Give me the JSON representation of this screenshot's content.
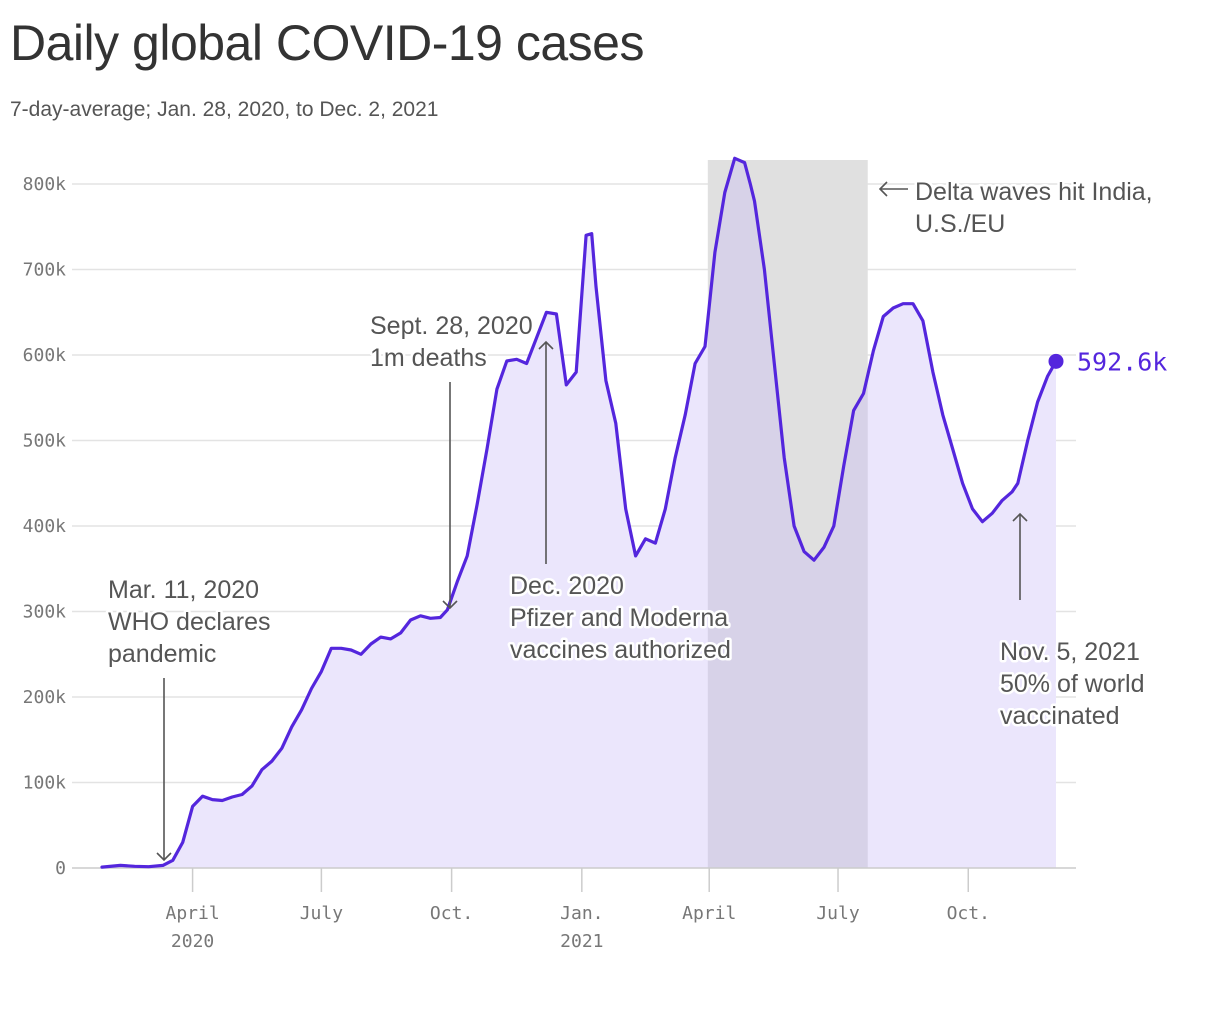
{
  "header": {
    "title": "Daily global COVID-19 cases",
    "subtitle": "7-day-average; Jan. 28, 2020, to Dec. 2, 2021"
  },
  "colors": {
    "line": "#5426dd",
    "area": "#ebe6fc",
    "band": "#e0e0e0",
    "band_overlap": "#d7d2e8",
    "text": "#333333",
    "grid": "#e3e3e3"
  },
  "chart_data": {
    "type": "area",
    "title": "Daily global COVID-19 cases",
    "subtitle": "7-day-average; Jan. 28, 2020, to Dec. 2, 2021",
    "xlabel": "",
    "ylabel": "",
    "ylim": [
      0,
      800000
    ],
    "yticks": [
      0,
      100000,
      200000,
      300000,
      400000,
      500000,
      600000,
      700000,
      800000
    ],
    "ytick_labels": [
      "0",
      "100k",
      "200k",
      "300k",
      "400k",
      "500k",
      "600k",
      "700k",
      "800k"
    ],
    "xlim": [
      "2020-01-28",
      "2021-12-02"
    ],
    "xticks": [
      {
        "date": "2020-04-01",
        "label": "April",
        "sublabel": "2020"
      },
      {
        "date": "2020-07-01",
        "label": "July",
        "sublabel": ""
      },
      {
        "date": "2020-10-01",
        "label": "Oct.",
        "sublabel": ""
      },
      {
        "date": "2021-01-01",
        "label": "Jan.",
        "sublabel": "2021"
      },
      {
        "date": "2021-04-01",
        "label": "April",
        "sublabel": ""
      },
      {
        "date": "2021-07-01",
        "label": "July",
        "sublabel": ""
      },
      {
        "date": "2021-10-01",
        "label": "Oct.",
        "sublabel": ""
      }
    ],
    "grid": true,
    "series": [
      {
        "name": "",
        "x": [
          "2020-01-28",
          "2020-02-10",
          "2020-02-20",
          "2020-03-01",
          "2020-03-11",
          "2020-03-18",
          "2020-03-25",
          "2020-04-01",
          "2020-04-08",
          "2020-04-15",
          "2020-04-22",
          "2020-04-29",
          "2020-05-06",
          "2020-05-13",
          "2020-05-20",
          "2020-05-27",
          "2020-06-03",
          "2020-06-10",
          "2020-06-17",
          "2020-06-24",
          "2020-07-01",
          "2020-07-08",
          "2020-07-15",
          "2020-07-22",
          "2020-07-29",
          "2020-08-05",
          "2020-08-12",
          "2020-08-19",
          "2020-08-26",
          "2020-09-02",
          "2020-09-09",
          "2020-09-16",
          "2020-09-23",
          "2020-09-28",
          "2020-10-05",
          "2020-10-12",
          "2020-10-19",
          "2020-10-26",
          "2020-11-02",
          "2020-11-09",
          "2020-11-16",
          "2020-11-23",
          "2020-11-30",
          "2020-12-07",
          "2020-12-14",
          "2020-12-21",
          "2020-12-28",
          "2021-01-04",
          "2021-01-08",
          "2021-01-11",
          "2021-01-18",
          "2021-01-25",
          "2021-02-01",
          "2021-02-08",
          "2021-02-15",
          "2021-02-22",
          "2021-03-01",
          "2021-03-08",
          "2021-03-15",
          "2021-03-22",
          "2021-03-29",
          "2021-04-05",
          "2021-04-12",
          "2021-04-19",
          "2021-04-26",
          "2021-04-30",
          "2021-05-03",
          "2021-05-10",
          "2021-05-17",
          "2021-05-24",
          "2021-05-31",
          "2021-06-07",
          "2021-06-14",
          "2021-06-21",
          "2021-06-28",
          "2021-07-05",
          "2021-07-12",
          "2021-07-19",
          "2021-07-26",
          "2021-08-02",
          "2021-08-09",
          "2021-08-16",
          "2021-08-23",
          "2021-08-30",
          "2021-09-06",
          "2021-09-13",
          "2021-09-20",
          "2021-09-27",
          "2021-10-04",
          "2021-10-11",
          "2021-10-18",
          "2021-10-25",
          "2021-11-01",
          "2021-11-05",
          "2021-11-12",
          "2021-11-19",
          "2021-11-26",
          "2021-12-02"
        ],
        "values": [
          1000,
          3000,
          2000,
          1500,
          3000,
          9000,
          30000,
          72000,
          84000,
          80000,
          79000,
          83000,
          86000,
          96000,
          115000,
          125000,
          140000,
          165000,
          185000,
          210000,
          230000,
          257000,
          257000,
          255000,
          250000,
          262000,
          270000,
          268000,
          275000,
          290000,
          295000,
          292000,
          293000,
          302000,
          335000,
          365000,
          425000,
          490000,
          560000,
          593000,
          595000,
          590000,
          620000,
          650000,
          648000,
          565000,
          580000,
          740000,
          742000,
          680000,
          570000,
          520000,
          420000,
          365000,
          385000,
          380000,
          420000,
          480000,
          530000,
          590000,
          610000,
          720000,
          790000,
          830000,
          825000,
          800000,
          780000,
          700000,
          590000,
          480000,
          400000,
          370000,
          360000,
          375000,
          400000,
          470000,
          535000,
          555000,
          605000,
          645000,
          655000,
          660000,
          660000,
          640000,
          580000,
          530000,
          490000,
          450000,
          420000,
          405000,
          415000,
          430000,
          440000,
          450000,
          500000,
          545000,
          575000,
          592600
        ]
      }
    ],
    "shaded_region": {
      "x_start": "2021-03-31",
      "x_end": "2021-07-22"
    },
    "end_point": {
      "date": "2021-12-02",
      "value": 592600,
      "label": "592.6k"
    },
    "annotations": [
      {
        "id": "who",
        "lines": [
          "Mar. 11, 2020",
          "WHO declares",
          "pandemic"
        ],
        "date": "2020-03-11"
      },
      {
        "id": "deaths",
        "lines": [
          "Sept. 28, 2020",
          "1m deaths"
        ],
        "date": "2020-09-28"
      },
      {
        "id": "vaccines",
        "lines": [
          "Dec. 2020",
          "Pfizer and Moderna",
          "vaccines authorized"
        ],
        "date": "2020-12-12"
      },
      {
        "id": "delta",
        "lines": [
          "Delta waves hit India,",
          "U.S./EU"
        ],
        "date": "2021-07-22"
      },
      {
        "id": "world",
        "lines": [
          "Nov. 5, 2021",
          "50% of world",
          "vaccinated"
        ],
        "date": "2021-11-05"
      }
    ]
  }
}
